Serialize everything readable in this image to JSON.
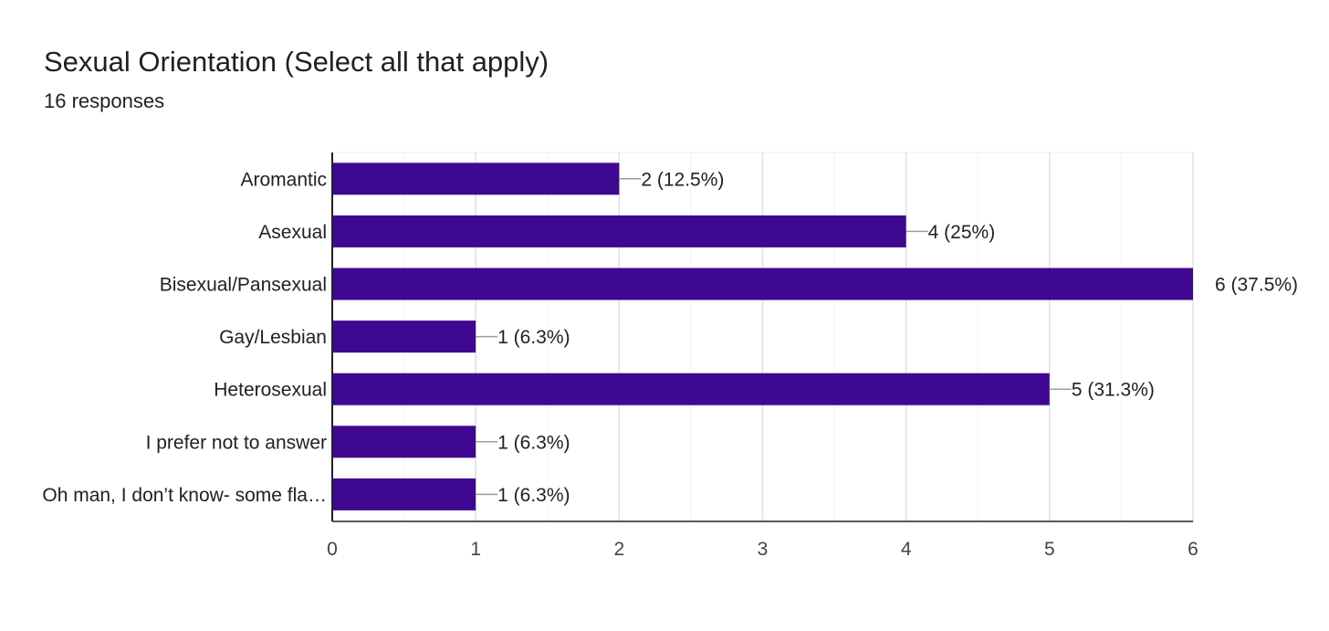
{
  "header": {
    "title": "Sexual Orientation (Select all that apply)",
    "subtitle": "16 responses"
  },
  "colors": {
    "bar": "#3f0891",
    "grid": "#ececec",
    "axis": "#202124",
    "leader": "#9e9e9e",
    "text": "#202124"
  },
  "chart_data": {
    "type": "bar",
    "orientation": "horizontal",
    "title": "Sexual Orientation (Select all that apply)",
    "subtitle": "16 responses",
    "categories": [
      "Aromantic",
      "Asexual",
      "Bisexual/Pansexual",
      "Gay/Lesbian",
      "Heterosexual",
      "I prefer not to answer",
      "Oh man, I don’t know- some fla…"
    ],
    "values": [
      2,
      4,
      6,
      1,
      5,
      1,
      1
    ],
    "data_labels": [
      "2 (12.5%)",
      "4 (25%)",
      "6 (37.5%)",
      "1 (6.3%)",
      "5 (31.3%)",
      "1 (6.3%)",
      "1 (6.3%)"
    ],
    "xlim": [
      0,
      6
    ],
    "xticks": [
      0,
      1,
      2,
      3,
      4,
      5,
      6
    ],
    "grid": true,
    "legend": "none"
  }
}
